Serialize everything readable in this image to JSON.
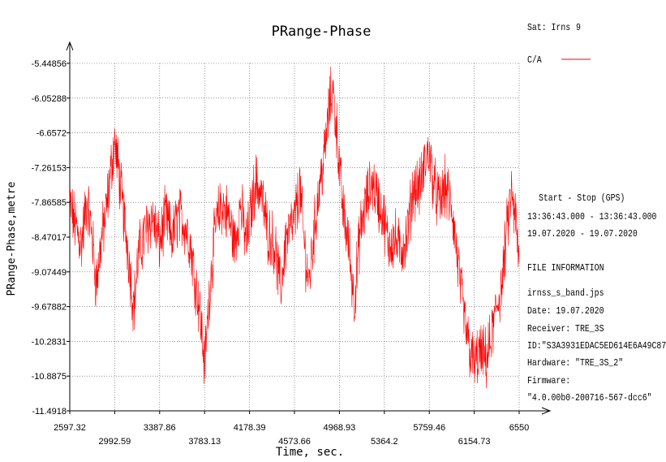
{
  "chart_data": {
    "type": "line",
    "title": "PRange-Phase",
    "xlabel": "Time, sec.",
    "ylabel": "PRange-Phase,metre",
    "xlim": [
      2597.32,
      6550
    ],
    "ylim": [
      -11.4918,
      -5.44856
    ],
    "grid": true,
    "x_ticks_upper": [
      "2597.32",
      "3387.86",
      "4178.39",
      "4968.93",
      "5759.46",
      "6550"
    ],
    "x_ticks_lower": [
      "2992.59",
      "3783.13",
      "4573.66",
      "5364.2",
      "6154.73"
    ],
    "x_tick_values": [
      2597.32,
      2992.59,
      3387.86,
      3783.13,
      4178.39,
      4573.66,
      4968.93,
      5364.2,
      5759.46,
      6154.73,
      6550
    ],
    "y_ticks": [
      "-5.44856",
      "-6.05288",
      "-6.6572",
      "-7.26153",
      "-7.86585",
      "-8.47017",
      "-9.07449",
      "-9.67882",
      "-10.2831",
      "-10.8875",
      "-11.4918"
    ],
    "y_tick_values": [
      -5.44856,
      -6.05288,
      -6.6572,
      -7.26153,
      -7.86585,
      -8.47017,
      -9.07449,
      -9.67882,
      -10.2831,
      -10.8875,
      -11.4918
    ],
    "series": [
      {
        "name": "C/A",
        "color": "#ff0000",
        "trend": [
          [
            2597.32,
            -7.9
          ],
          [
            2650,
            -8.3
          ],
          [
            2700,
            -8.6
          ],
          [
            2750,
            -7.8
          ],
          [
            2800,
            -8.6
          ],
          [
            2830,
            -9.3
          ],
          [
            2870,
            -8.6
          ],
          [
            2920,
            -8.0
          ],
          [
            2960,
            -7.3
          ],
          [
            2990,
            -6.8
          ],
          [
            3020,
            -7.2
          ],
          [
            3060,
            -7.9
          ],
          [
            3110,
            -8.7
          ],
          [
            3160,
            -9.7
          ],
          [
            3200,
            -8.8
          ],
          [
            3260,
            -8.4
          ],
          [
            3320,
            -8.1
          ],
          [
            3387.86,
            -8.6
          ],
          [
            3440,
            -8.1
          ],
          [
            3500,
            -8.5
          ],
          [
            3550,
            -8.1
          ],
          [
            3600,
            -8.2
          ],
          [
            3650,
            -8.5
          ],
          [
            3700,
            -9.2
          ],
          [
            3740,
            -9.7
          ],
          [
            3783.13,
            -10.7
          ],
          [
            3830,
            -9.3
          ],
          [
            3880,
            -8.3
          ],
          [
            3930,
            -7.9
          ],
          [
            3990,
            -8.1
          ],
          [
            4050,
            -8.6
          ],
          [
            4100,
            -7.9
          ],
          [
            4150,
            -8.6
          ],
          [
            4178.39,
            -8.2
          ],
          [
            4230,
            -7.5
          ],
          [
            4280,
            -7.7
          ],
          [
            4340,
            -8.4
          ],
          [
            4400,
            -8.6
          ],
          [
            4450,
            -9.4
          ],
          [
            4500,
            -8.5
          ],
          [
            4573.66,
            -8.2
          ],
          [
            4620,
            -7.6
          ],
          [
            4660,
            -8.6
          ],
          [
            4700,
            -9.3
          ],
          [
            4740,
            -8.5
          ],
          [
            4780,
            -7.8
          ],
          [
            4840,
            -7.0
          ],
          [
            4880,
            -6.2
          ],
          [
            4910,
            -5.9
          ],
          [
            4950,
            -6.7
          ],
          [
            4968.93,
            -7.3
          ],
          [
            5000,
            -8.0
          ],
          [
            5050,
            -8.6
          ],
          [
            5100,
            -9.6
          ],
          [
            5150,
            -8.4
          ],
          [
            5200,
            -7.9
          ],
          [
            5260,
            -7.5
          ],
          [
            5320,
            -7.9
          ],
          [
            5364.2,
            -8.2
          ],
          [
            5400,
            -8.6
          ],
          [
            5460,
            -8.5
          ],
          [
            5500,
            -8.7
          ],
          [
            5560,
            -8.5
          ],
          [
            5620,
            -7.6
          ],
          [
            5680,
            -7.6
          ],
          [
            5730,
            -7.1
          ],
          [
            5759.46,
            -7.0
          ],
          [
            5800,
            -7.6
          ],
          [
            5850,
            -7.9
          ],
          [
            5900,
            -7.6
          ],
          [
            5960,
            -8.0
          ],
          [
            6010,
            -8.9
          ],
          [
            6060,
            -9.8
          ],
          [
            6110,
            -10.4
          ],
          [
            6154.73,
            -10.7
          ],
          [
            6200,
            -10.5
          ],
          [
            6260,
            -10.6
          ],
          [
            6300,
            -10.3
          ],
          [
            6360,
            -9.6
          ],
          [
            6400,
            -9.3
          ],
          [
            6440,
            -8.4
          ],
          [
            6480,
            -7.7
          ],
          [
            6520,
            -8.2
          ],
          [
            6550,
            -9.0
          ]
        ]
      }
    ],
    "legend_placement": "top-right"
  },
  "side_panel": {
    "sat_label": "Sat: Irns",
    "sat_number": "9",
    "legend_label": "C/A",
    "start_stop_heading": "Start  -  Stop  (GPS)",
    "time_range": "13:36:43.000 - 13:36:43.000",
    "date_range": "19.07.2020 - 19.07.2020",
    "file_info_heading": "FILE INFORMATION",
    "file_name": "irnss_s_band.jps",
    "date": "Date: 19.07.2020",
    "receiver": "Receiver: TRE_3S",
    "id": "ID:\"S3A3931EDAC5ED614E6A49C87",
    "hardware": "Hardware: \"TRE_3S_2\"",
    "firmware_label": "Firmware:",
    "firmware_value": "\"4.0.00b0-200716-567-dcc6\""
  }
}
